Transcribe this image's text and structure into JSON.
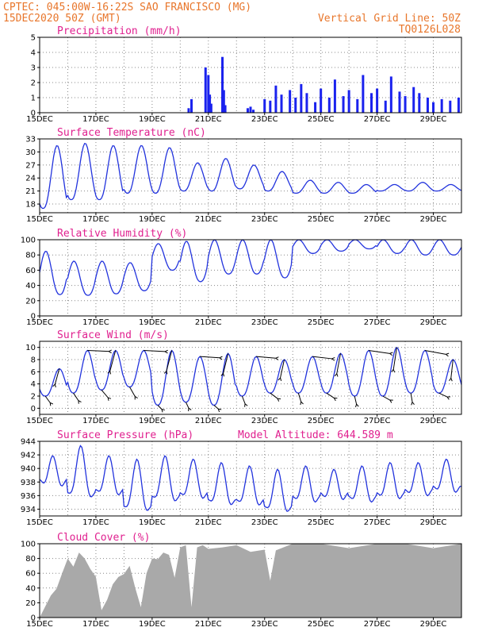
{
  "header": {
    "line1": "CPTEC:   045:00W-16:22S  SAO FRANCISCO (MG)",
    "line2": "15DEC2020 50Z (GMT)",
    "grid_note": "Vertical Grid Line: 50Z",
    "code": "TQ0126L028"
  },
  "colors": {
    "line": "#2233dd",
    "bar": "#1a22ee",
    "cloud": "#a9a9a9",
    "title": "#e0208f",
    "header": "#e8762b"
  },
  "x_labels": [
    "15DEC",
    "17DEC",
    "19DEC",
    "21DEC",
    "23DEC",
    "25DEC",
    "27DEC",
    "29DEC"
  ],
  "chart_data": [
    {
      "type": "bar",
      "title": "Precipitation (mm/h)",
      "ylim": [
        0,
        5
      ],
      "yticks": [
        0,
        1,
        2,
        3,
        4,
        5
      ],
      "x": [
        "20.3DEC",
        "20.4DEC",
        "20.9DEC",
        "21.0DEC",
        "21.05DEC",
        "21.1DEC",
        "21.5DEC",
        "21.55DEC",
        "21.6DEC",
        "22.4DEC",
        "22.5DEC",
        "22.6DEC",
        "23.0DEC",
        "23.2DEC",
        "23.4DEC",
        "23.6DEC",
        "23.9DEC",
        "24.1DEC",
        "24.3DEC",
        "24.5DEC",
        "24.8DEC",
        "25.0DEC",
        "25.3DEC",
        "25.5DEC",
        "25.8DEC",
        "26.0DEC",
        "26.3DEC",
        "26.5DEC",
        "26.8DEC",
        "27.0DEC",
        "27.3DEC",
        "27.5DEC",
        "27.8DEC",
        "28.0DEC",
        "28.3DEC",
        "28.5DEC",
        "28.8DEC",
        "29.0DEC",
        "29.3DEC",
        "29.6DEC",
        "29.9DEC"
      ],
      "values": [
        0.3,
        0.9,
        3.0,
        2.5,
        1.2,
        0.6,
        3.7,
        1.5,
        0.5,
        0.3,
        0.4,
        0.2,
        0.9,
        0.8,
        1.8,
        1.2,
        1.5,
        1.0,
        1.9,
        1.3,
        0.7,
        1.6,
        1.0,
        2.2,
        1.1,
        1.5,
        0.9,
        2.5,
        1.3,
        1.6,
        0.8,
        2.4,
        1.4,
        1.1,
        1.7,
        1.3,
        1.0,
        0.7,
        0.9,
        0.8,
        1.0
      ]
    },
    {
      "type": "line",
      "title": "Surface Temperature (nC)",
      "ylim": [
        16,
        33
      ],
      "yticks": [
        18,
        21,
        24,
        27,
        30,
        33
      ],
      "series": [
        {
          "max": [
            31.5,
            32.0,
            31.5,
            31.5,
            31.0,
            27.5,
            28.5,
            27.0,
            25.5,
            23.5,
            23.0,
            22.5,
            22.5,
            23.0,
            22.5
          ],
          "min": [
            17.0,
            19.0,
            19.0,
            20.5,
            20.5,
            21.0,
            21.0,
            21.5,
            21.0,
            20.5,
            20.5,
            20.5,
            21.0,
            21.0,
            21.0
          ]
        }
      ]
    },
    {
      "type": "line",
      "title": "Relative Humidity (%)",
      "ylim": [
        0,
        100
      ],
      "yticks": [
        0,
        20,
        40,
        60,
        80,
        100
      ],
      "series": [
        {
          "max": [
            85,
            72,
            72,
            70,
            95,
            98,
            100,
            100,
            100,
            100,
            100,
            100,
            100,
            100,
            100
          ],
          "min": [
            28,
            27,
            29,
            33,
            60,
            45,
            55,
            55,
            50,
            82,
            85,
            88,
            82,
            80,
            80
          ]
        }
      ]
    },
    {
      "type": "line",
      "title": "Surface Wind (m/s)",
      "ylim": [
        -1,
        11
      ],
      "yticks": [
        0,
        2,
        4,
        6,
        8,
        10
      ],
      "series": [
        {
          "max": [
            6.5,
            9.5,
            9.5,
            9.5,
            9.5,
            8.5,
            9.0,
            8.5,
            8.0,
            8.5,
            9.0,
            9.5,
            10.0,
            9.5,
            8.0
          ],
          "min": [
            2.0,
            2.5,
            3.0,
            3.5,
            0.5,
            1.0,
            0.5,
            2.0,
            2.5,
            2.5,
            2.5,
            2.0,
            2.0,
            2.5,
            2.5
          ]
        }
      ]
    },
    {
      "type": "line",
      "title": "Surface Pressure (hPa)",
      "subtitle": "Model Altitude: 644.589 m",
      "ylim": [
        933,
        944
      ],
      "yticks": [
        934,
        936,
        938,
        940,
        942,
        944
      ],
      "series": [
        {
          "max": [
            941.0,
            942.5,
            941.0,
            940.5,
            941.0,
            940.5,
            940.0,
            939.5,
            939.0,
            939.5,
            939.0,
            939.5,
            940.0,
            940.0,
            940.5
          ],
          "min": [
            937.5,
            935.5,
            936.0,
            933.5,
            935.0,
            935.5,
            934.5,
            934.5,
            933.5,
            935.0,
            935.5,
            935.0,
            935.5,
            936.0,
            936.5
          ]
        }
      ]
    },
    {
      "type": "area",
      "title": "Cloud Cover (%)",
      "ylim": [
        0,
        100
      ],
      "yticks": [
        0,
        20,
        40,
        60,
        80,
        100
      ],
      "x": [
        15.0,
        15.2,
        15.4,
        15.6,
        15.8,
        16.0,
        16.2,
        16.4,
        16.6,
        16.8,
        17.0,
        17.2,
        17.4,
        17.6,
        17.8,
        18.0,
        18.2,
        18.4,
        18.6,
        18.8,
        19.0,
        19.2,
        19.4,
        19.6,
        19.8,
        20.0,
        20.2,
        20.4,
        20.6,
        20.8,
        21.0,
        21.5,
        22.0,
        22.5,
        23.0,
        23.2,
        23.4,
        24.0,
        25.0,
        26.0,
        27.0,
        28.0,
        29.0,
        30.0
      ],
      "values": [
        5,
        15,
        30,
        45,
        60,
        80,
        75,
        88,
        80,
        72,
        55,
        10,
        30,
        45,
        55,
        65,
        70,
        40,
        20,
        60,
        80,
        85,
        88,
        85,
        60,
        95,
        98,
        20,
        95,
        98,
        99,
        95,
        98,
        95,
        92,
        50,
        97,
        100,
        100,
        100,
        100,
        100,
        100,
        100
      ]
    }
  ]
}
